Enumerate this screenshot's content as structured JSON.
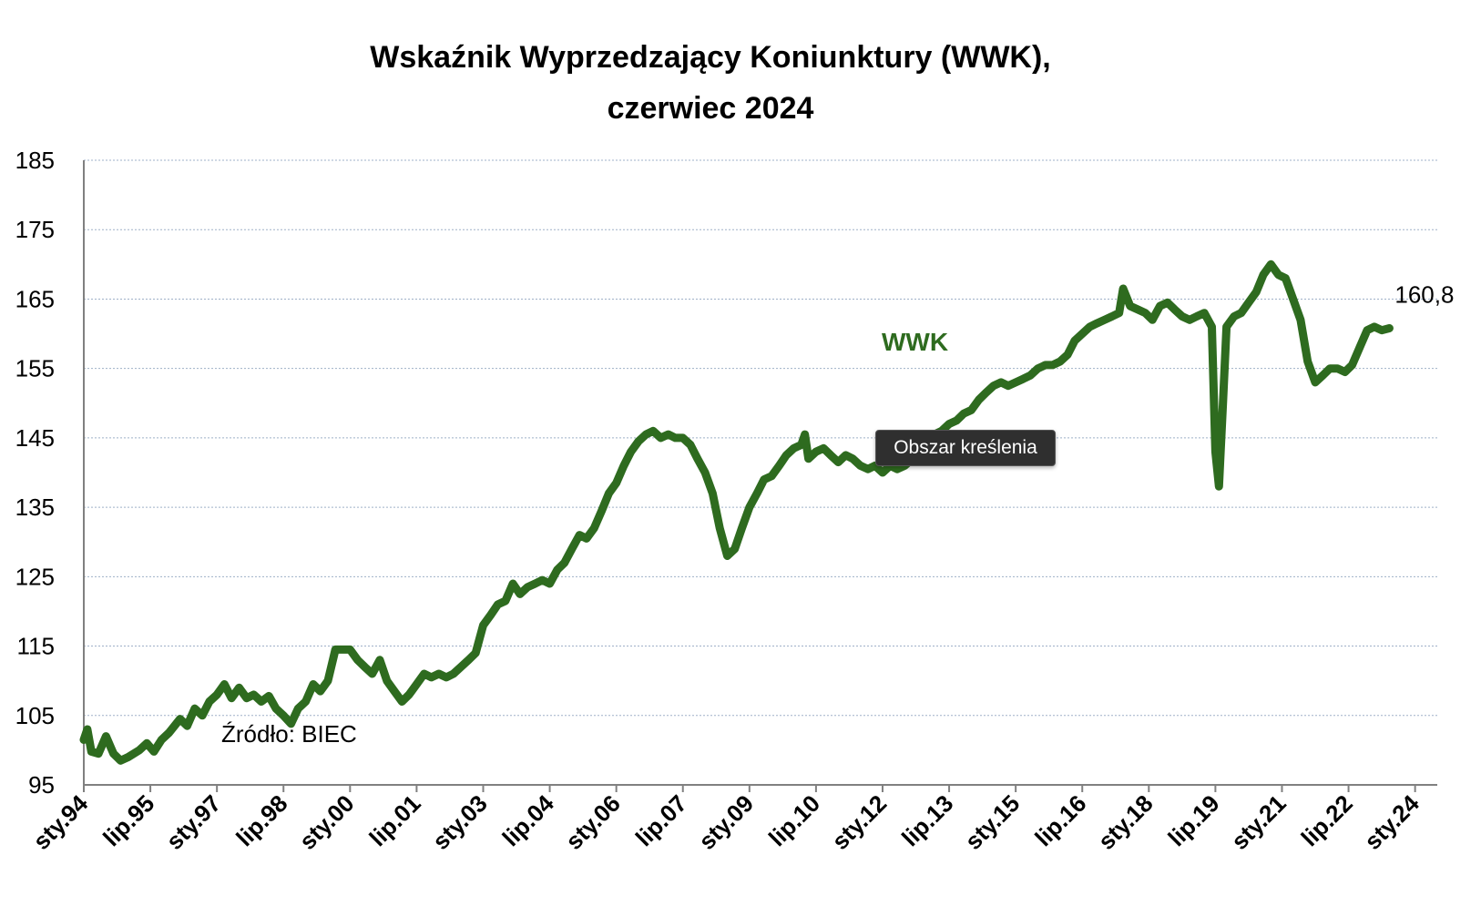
{
  "chart_data": {
    "type": "line",
    "title_line1": "Wskaźnik Wyprzedzający Koniunktury (WWK),",
    "title_line2": "czerwiec 2024",
    "xlabel": "",
    "ylabel": "",
    "ylim": [
      95,
      185
    ],
    "yticks": [
      95,
      105,
      115,
      125,
      135,
      145,
      155,
      165,
      175,
      185
    ],
    "xlim": [
      1994.0,
      2024.5
    ],
    "xtick_labels": [
      {
        "label": "sty.94",
        "x": 1994.0
      },
      {
        "label": "lip.95",
        "x": 1995.5
      },
      {
        "label": "sty.97",
        "x": 1997.0
      },
      {
        "label": "lip.98",
        "x": 1998.5
      },
      {
        "label": "sty.00",
        "x": 2000.0
      },
      {
        "label": "lip.01",
        "x": 2001.5
      },
      {
        "label": "sty.03",
        "x": 2003.0
      },
      {
        "label": "lip.04",
        "x": 2004.5
      },
      {
        "label": "sty.06",
        "x": 2006.0
      },
      {
        "label": "lip.07",
        "x": 2007.5
      },
      {
        "label": "sty.09",
        "x": 2009.0
      },
      {
        "label": "lip.10",
        "x": 2010.5
      },
      {
        "label": "sty.12",
        "x": 2012.0
      },
      {
        "label": "lip.13",
        "x": 2013.5
      },
      {
        "label": "sty.15",
        "x": 2015.0
      },
      {
        "label": "lip.16",
        "x": 2016.5
      },
      {
        "label": "sty.18",
        "x": 2018.0
      },
      {
        "label": "lip.19",
        "x": 2019.5
      },
      {
        "label": "sty.21",
        "x": 2021.0
      },
      {
        "label": "lip.22",
        "x": 2022.5
      },
      {
        "label": "sty.24",
        "x": 2024.0
      }
    ],
    "grid": true,
    "series": [
      {
        "name": "WWK",
        "color": "#2e6b1f",
        "points": [
          [
            1994.0,
            101.5
          ],
          [
            1994.08,
            103.0
          ],
          [
            1994.17,
            99.8
          ],
          [
            1994.33,
            99.5
          ],
          [
            1994.5,
            102.0
          ],
          [
            1994.67,
            99.5
          ],
          [
            1994.83,
            98.5
          ],
          [
            1995.0,
            99.0
          ],
          [
            1995.25,
            100.0
          ],
          [
            1995.42,
            101.0
          ],
          [
            1995.58,
            99.8
          ],
          [
            1995.75,
            101.5
          ],
          [
            1995.92,
            102.5
          ],
          [
            1996.17,
            104.5
          ],
          [
            1996.33,
            103.5
          ],
          [
            1996.5,
            106.0
          ],
          [
            1996.67,
            105.0
          ],
          [
            1996.83,
            107.0
          ],
          [
            1997.0,
            108.0
          ],
          [
            1997.17,
            109.5
          ],
          [
            1997.33,
            107.5
          ],
          [
            1997.5,
            109.0
          ],
          [
            1997.67,
            107.5
          ],
          [
            1997.83,
            108.0
          ],
          [
            1998.0,
            107.0
          ],
          [
            1998.17,
            107.8
          ],
          [
            1998.33,
            106.0
          ],
          [
            1998.5,
            105.0
          ],
          [
            1998.67,
            103.8
          ],
          [
            1998.83,
            106.0
          ],
          [
            1999.0,
            107.0
          ],
          [
            1999.17,
            109.5
          ],
          [
            1999.33,
            108.5
          ],
          [
            1999.5,
            110.0
          ],
          [
            1999.67,
            114.5
          ],
          [
            1999.83,
            114.5
          ],
          [
            2000.0,
            114.5
          ],
          [
            2000.17,
            113.0
          ],
          [
            2000.33,
            112.0
          ],
          [
            2000.5,
            111.0
          ],
          [
            2000.67,
            113.0
          ],
          [
            2000.83,
            110.0
          ],
          [
            2001.0,
            108.5
          ],
          [
            2001.17,
            107.0
          ],
          [
            2001.33,
            108.0
          ],
          [
            2001.5,
            109.5
          ],
          [
            2001.67,
            111.0
          ],
          [
            2001.83,
            110.5
          ],
          [
            2002.0,
            111.0
          ],
          [
            2002.17,
            110.5
          ],
          [
            2002.33,
            111.0
          ],
          [
            2002.5,
            112.0
          ],
          [
            2002.67,
            113.0
          ],
          [
            2002.83,
            114.0
          ],
          [
            2003.0,
            118.0
          ],
          [
            2003.17,
            119.5
          ],
          [
            2003.33,
            121.0
          ],
          [
            2003.5,
            121.5
          ],
          [
            2003.67,
            124.0
          ],
          [
            2003.83,
            122.5
          ],
          [
            2004.0,
            123.5
          ],
          [
            2004.17,
            124.0
          ],
          [
            2004.33,
            124.5
          ],
          [
            2004.5,
            124.0
          ],
          [
            2004.67,
            126.0
          ],
          [
            2004.83,
            127.0
          ],
          [
            2005.0,
            129.0
          ],
          [
            2005.17,
            131.0
          ],
          [
            2005.33,
            130.5
          ],
          [
            2005.5,
            132.0
          ],
          [
            2005.67,
            134.5
          ],
          [
            2005.83,
            137.0
          ],
          [
            2006.0,
            138.5
          ],
          [
            2006.17,
            141.0
          ],
          [
            2006.33,
            143.0
          ],
          [
            2006.5,
            144.5
          ],
          [
            2006.67,
            145.5
          ],
          [
            2006.83,
            146.0
          ],
          [
            2007.0,
            145.0
          ],
          [
            2007.17,
            145.5
          ],
          [
            2007.33,
            145.0
          ],
          [
            2007.5,
            145.0
          ],
          [
            2007.67,
            144.0
          ],
          [
            2007.83,
            142.0
          ],
          [
            2008.0,
            140.0
          ],
          [
            2008.17,
            137.0
          ],
          [
            2008.33,
            132.0
          ],
          [
            2008.5,
            128.0
          ],
          [
            2008.67,
            129.0
          ],
          [
            2008.83,
            132.0
          ],
          [
            2009.0,
            135.0
          ],
          [
            2009.17,
            137.0
          ],
          [
            2009.33,
            139.0
          ],
          [
            2009.5,
            139.5
          ],
          [
            2009.67,
            141.0
          ],
          [
            2009.83,
            142.5
          ],
          [
            2010.0,
            143.5
          ],
          [
            2010.17,
            144.0
          ],
          [
            2010.25,
            145.5
          ],
          [
            2010.33,
            142.0
          ],
          [
            2010.5,
            143.0
          ],
          [
            2010.67,
            143.5
          ],
          [
            2010.83,
            142.5
          ],
          [
            2011.0,
            141.5
          ],
          [
            2011.17,
            142.5
          ],
          [
            2011.33,
            142.0
          ],
          [
            2011.5,
            141.0
          ],
          [
            2011.67,
            140.5
          ],
          [
            2011.83,
            141.0
          ],
          [
            2012.0,
            140.0
          ],
          [
            2012.17,
            141.0
          ],
          [
            2012.33,
            140.5
          ],
          [
            2012.5,
            141.0
          ],
          [
            2012.67,
            142.0
          ],
          [
            2012.83,
            143.0
          ],
          [
            2013.0,
            144.0
          ],
          [
            2013.17,
            145.5
          ],
          [
            2013.33,
            146.0
          ],
          [
            2013.5,
            147.0
          ],
          [
            2013.67,
            147.5
          ],
          [
            2013.83,
            148.5
          ],
          [
            2014.0,
            149.0
          ],
          [
            2014.17,
            150.5
          ],
          [
            2014.33,
            151.5
          ],
          [
            2014.5,
            152.5
          ],
          [
            2014.67,
            153.0
          ],
          [
            2014.83,
            152.5
          ],
          [
            2015.0,
            153.0
          ],
          [
            2015.17,
            153.5
          ],
          [
            2015.33,
            154.0
          ],
          [
            2015.5,
            155.0
          ],
          [
            2015.67,
            155.5
          ],
          [
            2015.83,
            155.5
          ],
          [
            2016.0,
            156.0
          ],
          [
            2016.17,
            157.0
          ],
          [
            2016.33,
            159.0
          ],
          [
            2016.5,
            160.0
          ],
          [
            2016.67,
            161.0
          ],
          [
            2016.83,
            161.5
          ],
          [
            2017.0,
            162.0
          ],
          [
            2017.17,
            162.5
          ],
          [
            2017.33,
            163.0
          ],
          [
            2017.42,
            166.5
          ],
          [
            2017.58,
            164.0
          ],
          [
            2017.75,
            163.5
          ],
          [
            2017.92,
            163.0
          ],
          [
            2018.08,
            162.0
          ],
          [
            2018.25,
            164.0
          ],
          [
            2018.42,
            164.5
          ],
          [
            2018.58,
            163.5
          ],
          [
            2018.75,
            162.5
          ],
          [
            2018.92,
            162.0
          ],
          [
            2019.08,
            162.5
          ],
          [
            2019.25,
            163.0
          ],
          [
            2019.42,
            161.0
          ],
          [
            2019.5,
            143.0
          ],
          [
            2019.58,
            138.0
          ],
          [
            2019.67,
            150.0
          ],
          [
            2019.75,
            161.0
          ],
          [
            2019.92,
            162.5
          ],
          [
            2020.08,
            163.0
          ],
          [
            2020.25,
            164.5
          ],
          [
            2020.42,
            166.0
          ],
          [
            2020.58,
            168.5
          ],
          [
            2020.75,
            170.0
          ],
          [
            2020.92,
            168.5
          ],
          [
            2021.08,
            168.0
          ],
          [
            2021.25,
            165.0
          ],
          [
            2021.42,
            162.0
          ],
          [
            2021.58,
            156.0
          ],
          [
            2021.75,
            153.0
          ],
          [
            2021.92,
            154.0
          ],
          [
            2022.08,
            155.0
          ],
          [
            2022.25,
            155.0
          ],
          [
            2022.42,
            154.5
          ],
          [
            2022.58,
            155.5
          ],
          [
            2022.75,
            158.0
          ],
          [
            2022.92,
            160.5
          ],
          [
            2023.08,
            161.0
          ],
          [
            2023.25,
            160.5
          ],
          [
            2023.42,
            160.8
          ]
        ]
      }
    ],
    "series_label": "WWK",
    "end_value_label": "160,8",
    "annotations": {
      "source": "Źródło: BIEC",
      "tooltip": "Obszar kreślenia"
    }
  }
}
